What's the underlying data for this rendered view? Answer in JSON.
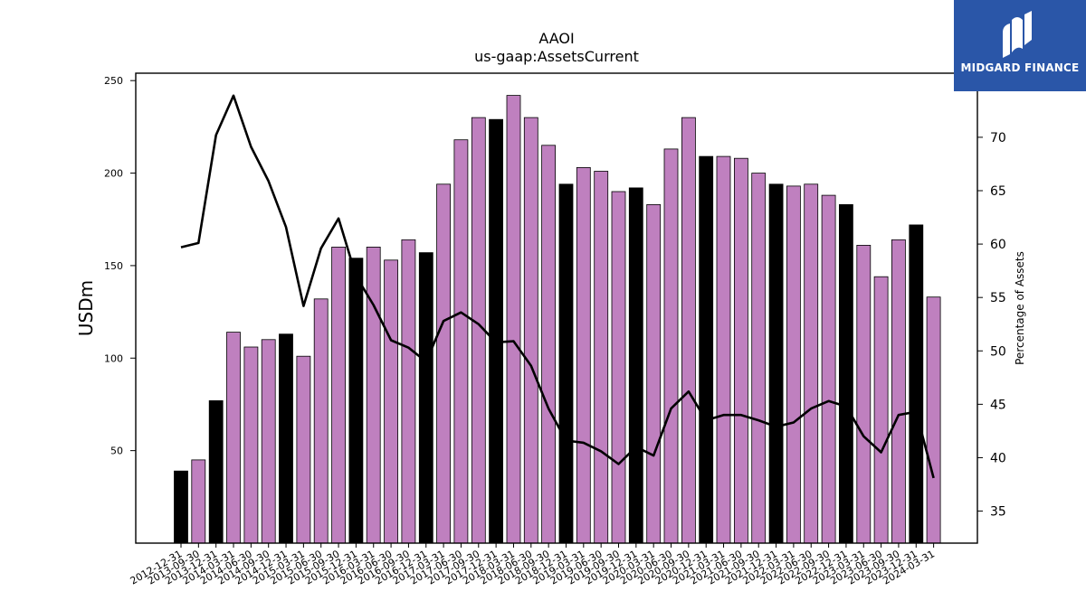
{
  "brand": {
    "name": "MIDGARD FINANCE",
    "logo_icon": "midgard-logo-icon",
    "bg_color": "#2a56a8"
  },
  "chart_data": {
    "type": "bar",
    "title": "AAOI",
    "subtitle": "us-gaap:AssetsCurrent",
    "ylabel": "USDm",
    "y2label": "Percentage of Assets",
    "ylim": [
      0,
      254
    ],
    "y2lim": [
      32,
      76
    ],
    "yticks": [
      50,
      100,
      150,
      200,
      250
    ],
    "y2ticks": [
      35,
      40,
      45,
      50,
      55,
      60,
      65,
      70
    ],
    "colors": {
      "bar": "#bf80bf",
      "bar_highlight": "#000000",
      "line": "#000000"
    },
    "categories": [
      "2012-12-31",
      "2013-09-30",
      "2013-12-31",
      "2014-03-31",
      "2014-06-30",
      "2014-09-30",
      "2014-12-31",
      "2015-03-31",
      "2015-06-30",
      "2015-09-30",
      "2015-12-31",
      "2016-03-31",
      "2016-06-30",
      "2016-09-30",
      "2016-12-31",
      "2017-03-31",
      "2017-06-30",
      "2017-09-30",
      "2017-12-31",
      "2018-03-31",
      "2018-06-30",
      "2018-09-30",
      "2018-12-31",
      "2019-03-31",
      "2019-06-30",
      "2019-09-30",
      "2019-12-31",
      "2020-03-31",
      "2020-06-30",
      "2020-09-30",
      "2020-12-31",
      "2021-03-31",
      "2021-06-30",
      "2021-09-30",
      "2021-12-31",
      "2022-03-31",
      "2022-06-30",
      "2022-09-30",
      "2022-12-31",
      "2023-03-31",
      "2023-06-30",
      "2023-09-30",
      "2023-12-31",
      "2024-03-31"
    ],
    "series": [
      {
        "type": "bar",
        "values": [
          39,
          45,
          77,
          114,
          106,
          110,
          113,
          101,
          132,
          160,
          154,
          160,
          153,
          164,
          157,
          194,
          218,
          230,
          229,
          242,
          230,
          215,
          194,
          203,
          201,
          190,
          192,
          183,
          213,
          230,
          209,
          209,
          208,
          200,
          194,
          193,
          194,
          188,
          183,
          161,
          144,
          164,
          172,
          133
        ],
        "highlight": [
          true,
          false,
          true,
          false,
          false,
          false,
          true,
          false,
          false,
          false,
          true,
          false,
          false,
          false,
          true,
          false,
          false,
          false,
          true,
          false,
          false,
          false,
          true,
          false,
          false,
          false,
          true,
          false,
          false,
          false,
          true,
          false,
          false,
          false,
          true,
          false,
          false,
          false,
          true,
          false,
          false,
          false,
          true,
          false
        ]
      },
      {
        "type": "line",
        "axis": "right",
        "values": [
          59.7,
          60.1,
          70.2,
          73.9,
          69.1,
          65.9,
          61.6,
          54.2,
          59.6,
          62.4,
          57.0,
          54.3,
          51.0,
          50.3,
          49.0,
          52.8,
          53.6,
          52.5,
          50.8,
          50.9,
          48.6,
          44.6,
          41.6,
          41.4,
          40.6,
          39.4,
          41.0,
          40.2,
          44.6,
          46.2,
          43.5,
          44.0,
          44.0,
          43.5,
          42.9,
          43.3,
          44.6,
          45.3,
          44.8,
          42.0,
          40.5,
          44.0,
          44.3,
          38.1
        ]
      }
    ]
  }
}
